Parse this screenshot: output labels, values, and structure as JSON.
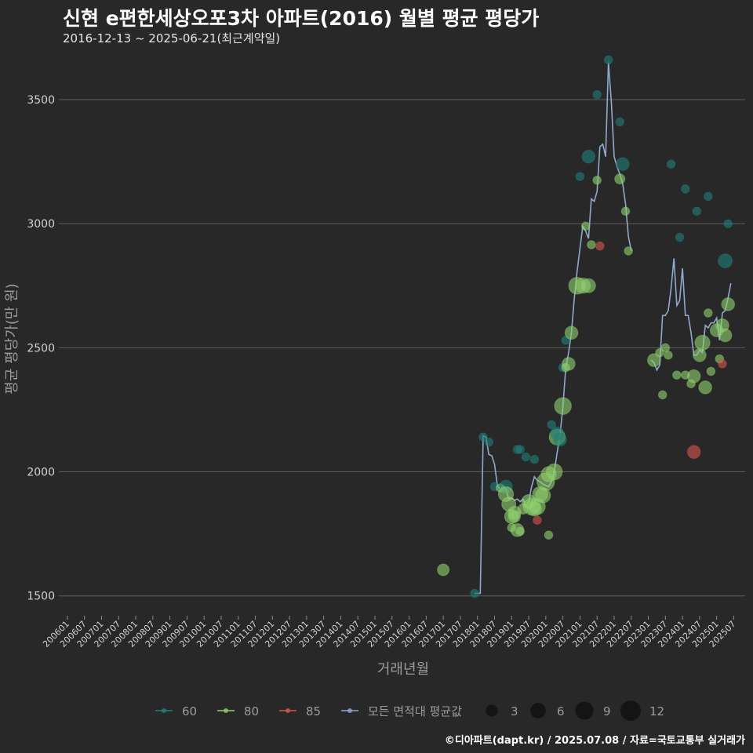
{
  "title": "신현 e편한세상오포3차 아파트(2016) 월별 평균 평당가",
  "subtitle": "2016-12-13 ~ 2025-06-21(최근계약일)",
  "credit": "©디아파트(dapt.kr) / 2025.07.08 / 자료=국토교통부 실거래가",
  "chart_data": {
    "type": "line",
    "xlabel": "거래년월",
    "ylabel": "평균 평당가(만 원)",
    "ylim": [
      1420,
      3680
    ],
    "yticks": [
      1500,
      2000,
      2500,
      3000,
      3500
    ],
    "x_range_months": [
      "2005-10",
      "2025-11"
    ],
    "xticks": [
      "200601",
      "200607",
      "200701",
      "200707",
      "200801",
      "200807",
      "200901",
      "200907",
      "201001",
      "201007",
      "201101",
      "201107",
      "201201",
      "201207",
      "201301",
      "201307",
      "201401",
      "201407",
      "201501",
      "201507",
      "201601",
      "201607",
      "201701",
      "201707",
      "201801",
      "201807",
      "201901",
      "201907",
      "202001",
      "202007",
      "202101",
      "202107",
      "202201",
      "202207",
      "202301",
      "202307",
      "202401",
      "202407",
      "202501",
      "202507"
    ],
    "grid": true,
    "legend_position": "bottom",
    "legend": {
      "series": [
        {
          "name": "60",
          "color": "#1f7f79"
        },
        {
          "name": "80",
          "color": "#8fd16e"
        },
        {
          "name": "85",
          "color": "#d9534f"
        },
        {
          "name": "모든 면적대 평균값",
          "color": "#8fa9cc"
        }
      ],
      "sizes": [
        3,
        6,
        9,
        12
      ]
    },
    "avg_line": {
      "name": "모든 면적대 평균값",
      "points": [
        [
          "2017-12",
          1510
        ],
        [
          "2018-01",
          1510
        ],
        [
          "2018-02",
          1510
        ],
        [
          "2018-03",
          2145
        ],
        [
          "2018-04",
          2140
        ],
        [
          "2018-05",
          2070
        ],
        [
          "2018-06",
          2065
        ],
        [
          "2018-07",
          2030
        ],
        [
          "2018-08",
          1945
        ],
        [
          "2018-09",
          1930
        ],
        [
          "2018-10",
          1945
        ],
        [
          "2018-11",
          1930
        ],
        [
          "2018-12",
          1890
        ],
        [
          "2019-01",
          1895
        ],
        [
          "2019-02",
          1885
        ],
        [
          "2019-03",
          1890
        ],
        [
          "2019-04",
          1880
        ],
        [
          "2019-05",
          1890
        ],
        [
          "2019-06",
          1860
        ],
        [
          "2019-07",
          1880
        ],
        [
          "2019-08",
          1940
        ],
        [
          "2019-09",
          1980
        ],
        [
          "2019-10",
          1965
        ],
        [
          "2019-11",
          1960
        ],
        [
          "2019-12",
          1950
        ],
        [
          "2020-01",
          1945
        ],
        [
          "2020-02",
          1940
        ],
        [
          "2020-03",
          1960
        ],
        [
          "2020-04",
          2000
        ],
        [
          "2020-05",
          2080
        ],
        [
          "2020-06",
          2150
        ],
        [
          "2020-07",
          2260
        ],
        [
          "2020-08",
          2420
        ],
        [
          "2020-09",
          2480
        ],
        [
          "2020-10",
          2560
        ],
        [
          "2020-11",
          2700
        ],
        [
          "2020-12",
          2810
        ],
        [
          "2021-01",
          2900
        ],
        [
          "2021-02",
          2990
        ],
        [
          "2021-03",
          2970
        ],
        [
          "2021-04",
          2940
        ],
        [
          "2021-05",
          3100
        ],
        [
          "2021-06",
          3090
        ],
        [
          "2021-07",
          3130
        ],
        [
          "2021-08",
          3310
        ],
        [
          "2021-09",
          3320
        ],
        [
          "2021-10",
          3270
        ],
        [
          "2021-11",
          3650
        ],
        [
          "2021-12",
          3490
        ],
        [
          "2021-13",
          3270
        ],
        [
          "2022-02",
          3230
        ],
        [
          "2022-03",
          3200
        ],
        [
          "2022-04",
          3160
        ],
        [
          "2022-05",
          3080
        ],
        [
          "2022-06",
          2950
        ],
        [
          "2022-07",
          2890
        ]
      ],
      "points_2023": [
        [
          "2023-02",
          2450
        ],
        [
          "2023-03",
          2440
        ],
        [
          "2023-04",
          2410
        ],
        [
          "2023-05",
          2430
        ],
        [
          "2023-06",
          2630
        ],
        [
          "2023-07",
          2630
        ],
        [
          "2023-08",
          2650
        ],
        [
          "2023-09",
          2740
        ],
        [
          "2023-10",
          2860
        ],
        [
          "2023-11",
          2670
        ],
        [
          "2023-12",
          2690
        ],
        [
          "2024-01",
          2820
        ],
        [
          "2024-02",
          2630
        ],
        [
          "2024-03",
          2630
        ],
        [
          "2024-04",
          2560
        ],
        [
          "2024-05",
          2470
        ],
        [
          "2024-06",
          2470
        ],
        [
          "2024-07",
          2490
        ],
        [
          "2024-08",
          2480
        ],
        [
          "2024-09",
          2590
        ],
        [
          "2024-10",
          2580
        ],
        [
          "2024-11",
          2600
        ],
        [
          "2024-12",
          2600
        ],
        [
          "2025-01",
          2620
        ],
        [
          "2025-02",
          2530
        ],
        [
          "2025-03",
          2640
        ],
        [
          "2025-04",
          2650
        ],
        [
          "2025-05",
          2700
        ],
        [
          "2025-06",
          2760
        ]
      ]
    },
    "scatter": [
      {
        "m": "2017-01",
        "y": 1605,
        "s": "80",
        "n": 3
      },
      {
        "m": "2017-12",
        "y": 1510,
        "s": "60",
        "n": 1
      },
      {
        "m": "2018-03",
        "y": 2140,
        "s": "60",
        "n": 1
      },
      {
        "m": "2018-05",
        "y": 2120,
        "s": "60",
        "n": 1
      },
      {
        "m": "2018-07",
        "y": 1940,
        "s": "60",
        "n": 1
      },
      {
        "m": "2018-09",
        "y": 1935,
        "s": "80",
        "n": 1
      },
      {
        "m": "2018-11",
        "y": 1940,
        "s": "60",
        "n": 4
      },
      {
        "m": "2018-11",
        "y": 1910,
        "s": "80",
        "n": 6
      },
      {
        "m": "2018-12",
        "y": 1870,
        "s": "80",
        "n": 5
      },
      {
        "m": "2019-01",
        "y": 1775,
        "s": "80",
        "n": 1
      },
      {
        "m": "2019-01",
        "y": 1820,
        "s": "80",
        "n": 5
      },
      {
        "m": "2019-02",
        "y": 1835,
        "s": "80",
        "n": 4
      },
      {
        "m": "2019-02",
        "y": 1820,
        "s": "80",
        "n": 3
      },
      {
        "m": "2019-03",
        "y": 2090,
        "s": "60",
        "n": 1
      },
      {
        "m": "2019-03",
        "y": 1765,
        "s": "80",
        "n": 4
      },
      {
        "m": "2019-04",
        "y": 2090,
        "s": "60",
        "n": 1
      },
      {
        "m": "2019-04",
        "y": 1760,
        "s": "80",
        "n": 1
      },
      {
        "m": "2019-05",
        "y": 1850,
        "s": "80",
        "n": 2
      },
      {
        "m": "2019-06",
        "y": 2060,
        "s": "60",
        "n": 1
      },
      {
        "m": "2019-07",
        "y": 1880,
        "s": "80",
        "n": 5
      },
      {
        "m": "2019-08",
        "y": 1860,
        "s": "80",
        "n": 8
      },
      {
        "m": "2019-09",
        "y": 2050,
        "s": "60",
        "n": 1
      },
      {
        "m": "2019-09",
        "y": 1850,
        "s": "80",
        "n": 5
      },
      {
        "m": "2019-10",
        "y": 1860,
        "s": "80",
        "n": 7
      },
      {
        "m": "2019-10",
        "y": 1805,
        "s": "85",
        "n": 1
      },
      {
        "m": "2019-11",
        "y": 1910,
        "s": "80",
        "n": 6
      },
      {
        "m": "2019-12",
        "y": 1905,
        "s": "80",
        "n": 6
      },
      {
        "m": "2020-01",
        "y": 1960,
        "s": "80",
        "n": 9
      },
      {
        "m": "2020-02",
        "y": 1990,
        "s": "80",
        "n": 6
      },
      {
        "m": "2020-02",
        "y": 1745,
        "s": "80",
        "n": 1
      },
      {
        "m": "2020-03",
        "y": 2190,
        "s": "60",
        "n": 1
      },
      {
        "m": "2020-04",
        "y": 2000,
        "s": "80",
        "n": 7
      },
      {
        "m": "2020-05",
        "y": 2140,
        "s": "80",
        "n": 7
      },
      {
        "m": "2020-05",
        "y": 2155,
        "s": "60",
        "n": 4
      },
      {
        "m": "2020-06",
        "y": 2130,
        "s": "60",
        "n": 4
      },
      {
        "m": "2020-07",
        "y": 2265,
        "s": "80",
        "n": 8
      },
      {
        "m": "2020-07",
        "y": 2420,
        "s": "60",
        "n": 1
      },
      {
        "m": "2020-08",
        "y": 2530,
        "s": "60",
        "n": 1
      },
      {
        "m": "2020-08",
        "y": 2420,
        "s": "80",
        "n": 1
      },
      {
        "m": "2020-09",
        "y": 2435,
        "s": "80",
        "n": 4
      },
      {
        "m": "2020-10",
        "y": 2560,
        "s": "80",
        "n": 4
      },
      {
        "m": "2020-12",
        "y": 2750,
        "s": "80",
        "n": 8
      },
      {
        "m": "2021-01",
        "y": 3190,
        "s": "60",
        "n": 1
      },
      {
        "m": "2021-02",
        "y": 2750,
        "s": "80",
        "n": 6
      },
      {
        "m": "2021-03",
        "y": 2990,
        "s": "80",
        "n": 1
      },
      {
        "m": "2021-04",
        "y": 2750,
        "s": "80",
        "n": 5
      },
      {
        "m": "2021-04",
        "y": 3270,
        "s": "60",
        "n": 4
      },
      {
        "m": "2021-05",
        "y": 2915,
        "s": "80",
        "n": 1
      },
      {
        "m": "2021-07",
        "y": 3520,
        "s": "60",
        "n": 1
      },
      {
        "m": "2021-07",
        "y": 3175,
        "s": "80",
        "n": 1
      },
      {
        "m": "2021-08",
        "y": 2910,
        "s": "85",
        "n": 1
      },
      {
        "m": "2021-11",
        "y": 3660,
        "s": "60",
        "n": 1
      },
      {
        "m": "2022-03",
        "y": 3410,
        "s": "60",
        "n": 1
      },
      {
        "m": "2022-03",
        "y": 3180,
        "s": "80",
        "n": 2
      },
      {
        "m": "2022-04",
        "y": 3240,
        "s": "60",
        "n": 4
      },
      {
        "m": "2022-05",
        "y": 3050,
        "s": "80",
        "n": 1
      },
      {
        "m": "2022-06",
        "y": 2890,
        "s": "80",
        "n": 1
      },
      {
        "m": "2023-03",
        "y": 2450,
        "s": "80",
        "n": 4
      },
      {
        "m": "2023-05",
        "y": 2480,
        "s": "80",
        "n": 1
      },
      {
        "m": "2023-06",
        "y": 2310,
        "s": "80",
        "n": 1
      },
      {
        "m": "2023-07",
        "y": 2500,
        "s": "80",
        "n": 1
      },
      {
        "m": "2023-08",
        "y": 2470,
        "s": "80",
        "n": 1
      },
      {
        "m": "2023-09",
        "y": 3240,
        "s": "60",
        "n": 1
      },
      {
        "m": "2023-11",
        "y": 2390,
        "s": "80",
        "n": 1
      },
      {
        "m": "2023-12",
        "y": 2945,
        "s": "60",
        "n": 1
      },
      {
        "m": "2024-02",
        "y": 2390,
        "s": "80",
        "n": 1
      },
      {
        "m": "2024-02",
        "y": 3140,
        "s": "60",
        "n": 1
      },
      {
        "m": "2024-04",
        "y": 2355,
        "s": "80",
        "n": 1
      },
      {
        "m": "2024-05",
        "y": 2080,
        "s": "85",
        "n": 4
      },
      {
        "m": "2024-05",
        "y": 2385,
        "s": "80",
        "n": 4
      },
      {
        "m": "2024-06",
        "y": 3050,
        "s": "60",
        "n": 1
      },
      {
        "m": "2024-07",
        "y": 2470,
        "s": "80",
        "n": 4
      },
      {
        "m": "2024-08",
        "y": 2520,
        "s": "80",
        "n": 6
      },
      {
        "m": "2024-09",
        "y": 2340,
        "s": "80",
        "n": 4
      },
      {
        "m": "2024-10",
        "y": 2640,
        "s": "80",
        "n": 1
      },
      {
        "m": "2024-10",
        "y": 3110,
        "s": "60",
        "n": 1
      },
      {
        "m": "2024-11",
        "y": 2405,
        "s": "80",
        "n": 1
      },
      {
        "m": "2025-01",
        "y": 2570,
        "s": "80",
        "n": 4
      },
      {
        "m": "2025-02",
        "y": 2455,
        "s": "80",
        "n": 1
      },
      {
        "m": "2025-03",
        "y": 2435,
        "s": "85",
        "n": 1
      },
      {
        "m": "2025-03",
        "y": 2590,
        "s": "80",
        "n": 4
      },
      {
        "m": "2025-04",
        "y": 2550,
        "s": "80",
        "n": 4
      },
      {
        "m": "2025-04",
        "y": 2850,
        "s": "60",
        "n": 5
      },
      {
        "m": "2025-05",
        "y": 2675,
        "s": "80",
        "n": 4
      },
      {
        "m": "2025-05",
        "y": 3000,
        "s": "60",
        "n": 1
      }
    ]
  }
}
